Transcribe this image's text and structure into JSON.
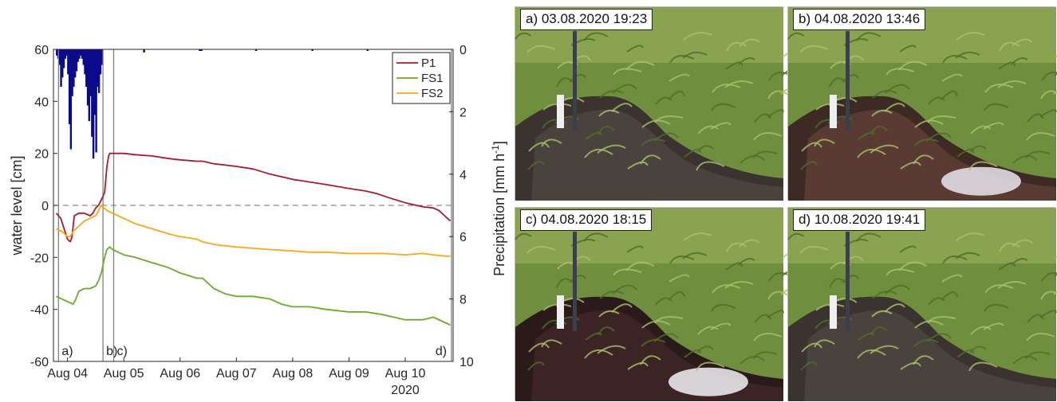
{
  "chart_data": {
    "type": "line",
    "xlabel": "",
    "ylabel": "water level [cm]",
    "y2label": "Precipitation [mm h⁻¹]",
    "ylabel2_parts": {
      "main": "Precipitation [mm h",
      "sup": "-1",
      "end": "]"
    },
    "x_ticks": [
      "Aug 04",
      "Aug 05",
      "Aug 06",
      "Aug 07",
      "Aug 08",
      "Aug 09",
      "Aug 10"
    ],
    "x_year": "2020",
    "xlim": [
      3.75,
      10.85
    ],
    "ylim": [
      -60,
      60
    ],
    "y_ticks": [
      -60,
      -40,
      -20,
      0,
      20,
      40,
      60
    ],
    "y2lim": [
      0,
      10
    ],
    "y2_ticks": [
      0,
      2,
      4,
      6,
      8,
      10
    ],
    "y2_reversed": true,
    "zero_line": 0,
    "legend_position": "top-right",
    "series": [
      {
        "name": "P1",
        "color": "#a51c30",
        "x": [
          3.8,
          3.88,
          4.0,
          4.05,
          4.08,
          4.12,
          4.2,
          4.3,
          4.4,
          4.45,
          4.5,
          4.55,
          4.62,
          4.66,
          4.7,
          4.73,
          4.75,
          4.8,
          5.0,
          5.2,
          5.5,
          5.8,
          6.0,
          6.3,
          6.4,
          6.6,
          7.0,
          7.3,
          7.6,
          8.0,
          8.3,
          8.6,
          9.0,
          9.3,
          9.5,
          9.7,
          10.0,
          10.2,
          10.3,
          10.5,
          10.6,
          10.7,
          10.8
        ],
        "y": [
          -3,
          -5,
          -13,
          -14,
          -12,
          -4,
          -3,
          -3,
          -4,
          -3,
          -1,
          0,
          3,
          5,
          15,
          19,
          20,
          20,
          20,
          19.5,
          19,
          18,
          17.5,
          17,
          17,
          16,
          15,
          14,
          12,
          10,
          9,
          8,
          6.5,
          5.5,
          4.5,
          3,
          1,
          0,
          -0.5,
          -1,
          -2,
          -4,
          -6
        ]
      },
      {
        "name": "FS1",
        "color": "#6aaa2a",
        "x": [
          3.8,
          3.9,
          4.0,
          4.1,
          4.15,
          4.2,
          4.3,
          4.4,
          4.5,
          4.55,
          4.6,
          4.62,
          4.66,
          4.7,
          4.75,
          4.8,
          4.9,
          5.0,
          5.2,
          5.5,
          5.8,
          6.0,
          6.3,
          6.4,
          6.6,
          6.8,
          7.0,
          7.3,
          7.6,
          7.8,
          8.0,
          8.3,
          8.6,
          9.0,
          9.3,
          9.6,
          9.8,
          10.0,
          10.3,
          10.5,
          10.7,
          10.8
        ],
        "y": [
          -35,
          -36,
          -37,
          -38,
          -36,
          -33,
          -32,
          -32,
          -31,
          -29,
          -26,
          -24,
          -20,
          -17,
          -16,
          -17,
          -18,
          -19,
          -20,
          -22,
          -24,
          -26,
          -28,
          -28,
          -32,
          -34,
          -35,
          -35,
          -36,
          -38,
          -39,
          -39,
          -40,
          -41,
          -41,
          -42,
          -43,
          -44,
          -44,
          -43,
          -45,
          -46
        ]
      },
      {
        "name": "FS2",
        "color": "#f5a81c",
        "x": [
          3.8,
          3.9,
          4.0,
          4.05,
          4.1,
          4.2,
          4.3,
          4.4,
          4.5,
          4.55,
          4.6,
          4.65,
          4.7,
          4.8,
          5.0,
          5.2,
          5.5,
          5.8,
          6.0,
          6.3,
          6.4,
          6.6,
          7.0,
          7.3,
          7.6,
          8.0,
          8.3,
          8.6,
          9.0,
          9.3,
          9.6,
          10.0,
          10.3,
          10.5,
          10.7,
          10.8
        ],
        "y": [
          -9,
          -10,
          -12,
          -12,
          -10,
          -8,
          -6,
          -5,
          -4,
          -2,
          0,
          -1,
          -2,
          -3,
          -5,
          -7,
          -9,
          -11,
          -12,
          -13,
          -14,
          -15,
          -16,
          -16.5,
          -17,
          -17.5,
          -18,
          -18,
          -18.5,
          -18.5,
          -18.5,
          -19,
          -18.5,
          -19,
          -19.5,
          -19.5
        ]
      },
      {
        "name": "Precipitation",
        "type": "bar",
        "color": "#0a0a8a",
        "axis": "right",
        "x": [
          3.81,
          3.835,
          3.86,
          3.885,
          3.91,
          3.935,
          3.96,
          3.985,
          4.01,
          4.035,
          4.06,
          4.085,
          4.11,
          4.135,
          4.16,
          4.185,
          4.21,
          4.235,
          4.26,
          4.285,
          4.31,
          4.335,
          4.36,
          4.385,
          4.41,
          4.435,
          4.46,
          4.485,
          4.51,
          4.535,
          4.56,
          4.585,
          4.61,
          5.36,
          6.35,
          6.38,
          7.35,
          8.35,
          9.33
        ],
        "values": [
          0.2,
          0.3,
          0.5,
          1.2,
          0.9,
          0.6,
          0.3,
          0.2,
          0.8,
          2.4,
          3.2,
          1.5,
          1.2,
          0.9,
          0.7,
          0.4,
          0.3,
          0.2,
          0.3,
          0.5,
          0.8,
          1.2,
          1.8,
          2.3,
          1.5,
          2.8,
          3.5,
          2.1,
          3.3,
          1.2,
          1.4,
          0.8,
          0.5,
          0.1,
          0.05,
          0.05,
          0.05,
          0.05,
          0.05
        ]
      }
    ],
    "event_markers": [
      {
        "label": "a)",
        "x": 3.84
      },
      {
        "label": "b)",
        "x": 4.63
      },
      {
        "label": "c)",
        "x": 4.82
      },
      {
        "label": "d)",
        "x": 10.82
      }
    ]
  },
  "photos": [
    {
      "label": "a) 03.08.2020 19:23",
      "scene": "dry"
    },
    {
      "label": "b) 04.08.2020 13:46",
      "scene": "wet-bright"
    },
    {
      "label": "c) 04.08.2020 18:15",
      "scene": "flooded"
    },
    {
      "label": "d) 10.08.2020 19:41",
      "scene": "dry"
    }
  ]
}
